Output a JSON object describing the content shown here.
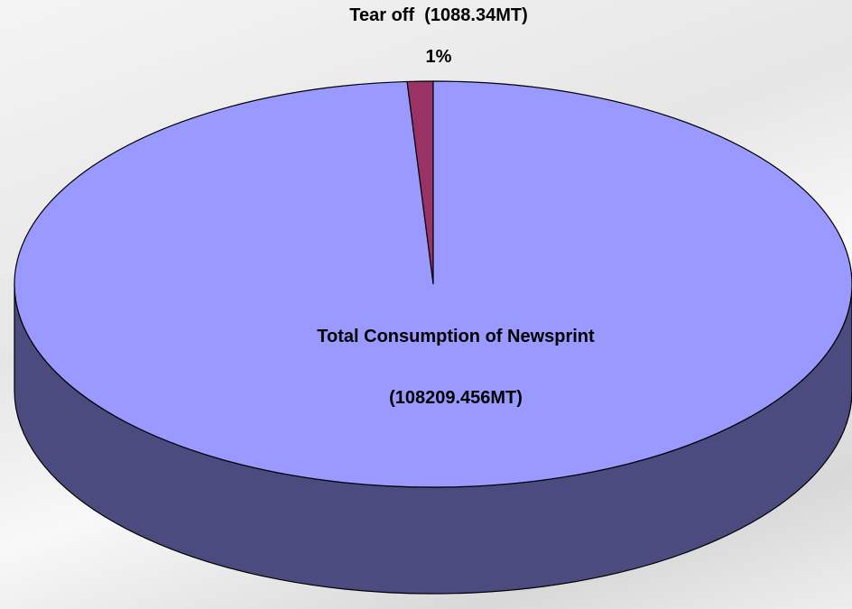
{
  "chart_data": {
    "type": "pie3d",
    "categories": [
      "Tear off",
      "Total Consumption of Newsprint"
    ],
    "values": [
      1088.34,
      108209.456
    ],
    "value_labels": [
      "(1088.34MT)",
      "(108209.456MT)"
    ],
    "percent_labels": [
      "1%",
      null
    ],
    "colors": [
      "#993366",
      "#9999ff"
    ],
    "side_color": "#4b4b80"
  }
}
